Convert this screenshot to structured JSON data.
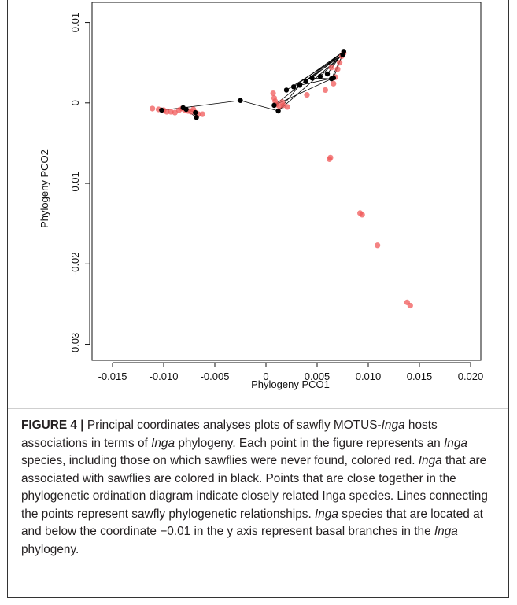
{
  "chart_data": {
    "type": "scatter",
    "xlabel": "Phylogeny PCO1",
    "ylabel": "Phylogeny PCO2",
    "xlim": [
      -0.017,
      0.021
    ],
    "ylim": [
      -0.032,
      0.0125
    ],
    "xticks": [
      -0.015,
      -0.01,
      -0.005,
      0,
      0.005,
      0.01,
      0.015,
      0.02
    ],
    "xtick_labels": [
      "-0.015",
      "-0.010",
      "-0.005",
      "0",
      "0.005",
      "0.010",
      "0.015",
      "0.020"
    ],
    "yticks": [
      0.01,
      0,
      -0.01,
      -0.02,
      -0.03
    ],
    "ytick_labels": [
      "0.01",
      "0",
      "-0.01",
      "-0.02",
      "-0.03"
    ],
    "grid": false,
    "colors": {
      "unassociated": "#f05a5a",
      "associated": "#000000",
      "lines": "#000000"
    },
    "series": [
      {
        "color": "#f05a5a",
        "points": [
          [
            -0.0111,
            -0.0007
          ],
          [
            -0.0105,
            -0.0008
          ],
          [
            -0.01,
            -0.0009
          ],
          [
            -0.0097,
            -0.0011
          ],
          [
            -0.0093,
            -0.0011
          ],
          [
            -0.0089,
            -0.0012
          ],
          [
            -0.0085,
            -0.0009
          ],
          [
            -0.0082,
            -0.0007
          ],
          [
            -0.0079,
            -0.0009
          ],
          [
            -0.0076,
            -0.001
          ],
          [
            -0.0073,
            -0.0011
          ],
          [
            -0.0069,
            -0.0012
          ],
          [
            -0.0066,
            -0.0014
          ],
          [
            -0.0062,
            -0.0014
          ],
          [
            -0.0071,
            -0.0008
          ],
          [
            0.0007,
            0.0012
          ],
          [
            0.0008,
            0.0006
          ],
          [
            0.0009,
            0.0002
          ],
          [
            0.001,
            -0.0002
          ],
          [
            0.0013,
            -0.0004
          ],
          [
            0.0017,
            -0.0003
          ],
          [
            0.0021,
            -0.0005
          ],
          [
            0.0016,
            0.0001
          ],
          [
            0.004,
            0.001
          ],
          [
            0.0058,
            0.0016
          ],
          [
            0.0066,
            0.0024
          ],
          [
            0.0068,
            0.0032
          ],
          [
            0.007,
            0.0042
          ],
          [
            0.0072,
            0.005
          ],
          [
            0.0074,
            0.0058
          ],
          [
            0.0076,
            0.0062
          ],
          [
            0.0064,
            0.0044
          ],
          [
            0.0062,
            -0.007
          ],
          [
            0.0063,
            -0.0068
          ],
          [
            0.0092,
            -0.0137
          ],
          [
            0.0094,
            -0.0139
          ],
          [
            0.0109,
            -0.0177
          ],
          [
            0.0138,
            -0.0248
          ],
          [
            0.0141,
            -0.0252
          ]
        ]
      },
      {
        "color": "#000000",
        "points": [
          [
            -0.0102,
            -0.0009
          ],
          [
            -0.0081,
            -0.0006
          ],
          [
            -0.0078,
            -0.0008
          ],
          [
            -0.0069,
            -0.0012
          ],
          [
            -0.0068,
            -0.0018
          ],
          [
            -0.0025,
            0.0003
          ],
          [
            0.0008,
            -0.0003
          ],
          [
            0.0012,
            -0.001
          ],
          [
            0.002,
            0.0016
          ],
          [
            0.0027,
            0.002
          ],
          [
            0.0033,
            0.0022
          ],
          [
            0.0039,
            0.0027
          ],
          [
            0.0045,
            0.0031
          ],
          [
            0.0053,
            0.0033
          ],
          [
            0.006,
            0.0036
          ],
          [
            0.0064,
            0.003
          ],
          [
            0.0066,
            0.0031
          ],
          [
            0.0075,
            0.006
          ],
          [
            0.0076,
            0.0064
          ]
        ]
      }
    ],
    "lines": [
      [
        [
          -0.0102,
          -0.0009
        ],
        [
          -0.0081,
          -0.0006
        ]
      ],
      [
        [
          -0.0081,
          -0.0006
        ],
        [
          -0.0069,
          -0.0012
        ]
      ],
      [
        [
          -0.0081,
          -0.0006
        ],
        [
          -0.0068,
          -0.0018
        ]
      ],
      [
        [
          -0.0081,
          -0.0006
        ],
        [
          -0.0025,
          0.0003
        ]
      ],
      [
        [
          -0.0025,
          0.0003
        ],
        [
          0.0012,
          -0.001
        ]
      ],
      [
        [
          0.0012,
          -0.001
        ],
        [
          0.0033,
          0.0022
        ]
      ],
      [
        [
          0.0012,
          -0.001
        ],
        [
          0.0075,
          0.006
        ]
      ],
      [
        [
          0.0008,
          -0.0003
        ],
        [
          0.0076,
          0.0064
        ]
      ],
      [
        [
          0.0008,
          -0.0003
        ],
        [
          0.0064,
          0.003
        ]
      ],
      [
        [
          0.002,
          0.0016
        ],
        [
          0.0075,
          0.006
        ]
      ],
      [
        [
          0.0027,
          0.002
        ],
        [
          0.0076,
          0.0064
        ]
      ],
      [
        [
          0.0033,
          0.0022
        ],
        [
          0.0066,
          0.0031
        ]
      ],
      [
        [
          0.0039,
          0.0027
        ],
        [
          0.0075,
          0.006
        ]
      ],
      [
        [
          0.0045,
          0.0031
        ],
        [
          0.0076,
          0.0064
        ]
      ],
      [
        [
          0.0053,
          0.0033
        ],
        [
          0.0075,
          0.006
        ]
      ],
      [
        [
          0.006,
          0.0036
        ],
        [
          0.0076,
          0.0064
        ]
      ],
      [
        [
          0.0064,
          0.003
        ],
        [
          0.0075,
          0.006
        ]
      ],
      [
        [
          0.0066,
          0.0031
        ],
        [
          0.0076,
          0.0064
        ]
      ],
      [
        [
          0.0045,
          0.0031
        ],
        [
          0.0064,
          0.003
        ]
      ],
      [
        [
          0.0033,
          0.0022
        ],
        [
          0.0076,
          0.0064
        ]
      ]
    ]
  },
  "caption": {
    "label": "FIGURE 4 |",
    "parts": [
      " Principal coordinates analyses plots of sawfly MOTUS-",
      "Inga",
      " hosts associations in terms of ",
      "Inga",
      " phylogeny. Each point in the figure represents an ",
      "Inga",
      " species, including those on which sawflies were never found, colored red. ",
      "Inga",
      " that are associated with sawflies are colored in black. Points that are close together in the phylogenetic ordination diagram indicate closely related Inga species. Lines connecting the points represent sawfly phylogenetic relationships. ",
      "Inga",
      " species that are located at and below the coordinate −0.01 in the y axis represent basal branches in the ",
      "Inga",
      " phylogeny."
    ]
  }
}
